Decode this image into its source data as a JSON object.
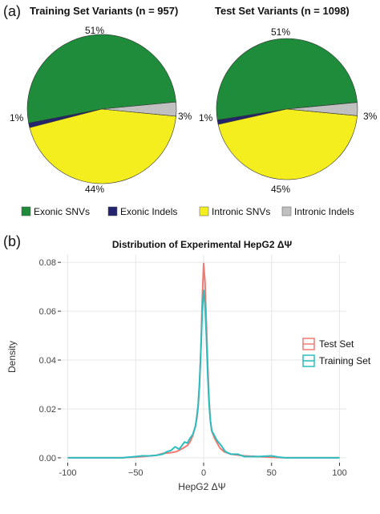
{
  "panels": {
    "a": "(a)",
    "b": "(b)"
  },
  "chart_data": [
    {
      "type": "pie",
      "title": "Training Set Variants (n = 957)",
      "labels": [
        "Exonic SNVs",
        "Exonic Indels",
        "Intronic SNVs",
        "Intronic Indels"
      ],
      "values": [
        51,
        1,
        44,
        3
      ],
      "value_labels": [
        "51%",
        "1%",
        "44%",
        "3%"
      ],
      "colors": [
        "#1e8c3a",
        "#24246e",
        "#f4ee1e",
        "#c0c0c0"
      ]
    },
    {
      "type": "pie",
      "title": "Test Set Variants (n = 1098)",
      "labels": [
        "Exonic SNVs",
        "Exonic Indels",
        "Intronic SNVs",
        "Intronic Indels"
      ],
      "values": [
        51,
        1,
        45,
        3
      ],
      "value_labels": [
        "51%",
        "1%",
        "45%",
        "3%"
      ],
      "colors": [
        "#1e8c3a",
        "#24246e",
        "#f4ee1e",
        "#c0c0c0"
      ]
    },
    {
      "type": "line",
      "title": "Distribution of Experimental HepG2 ΔΨ",
      "xlabel": "HepG2 ΔΨ",
      "ylabel": "Density",
      "xlim": [
        -105,
        105
      ],
      "ylim": [
        -0.002,
        0.083
      ],
      "xticks": [
        "-100",
        "−50",
        "0",
        "50",
        "100"
      ],
      "xtick_values": [
        -100,
        -50,
        0,
        50,
        100
      ],
      "yticks": [
        "0.00",
        "0.02",
        "0.04",
        "0.06",
        "0.08"
      ],
      "ytick_values": [
        0,
        0.02,
        0.04,
        0.06,
        0.08
      ],
      "legend_position": "right",
      "series": [
        {
          "name": "Test Set",
          "color": "#f07a72",
          "points": [
            [
              -100,
              0
            ],
            [
              -60,
              0
            ],
            [
              -45,
              0.0005
            ],
            [
              -35,
              0.001
            ],
            [
              -30,
              0.0018
            ],
            [
              -25,
              0.002
            ],
            [
              -20,
              0.0025
            ],
            [
              -15,
              0.004
            ],
            [
              -12,
              0.005
            ],
            [
              -10,
              0.0065
            ],
            [
              -8,
              0.009
            ],
            [
              -6,
              0.013
            ],
            [
              -5,
              0.016
            ],
            [
              -4,
              0.021
            ],
            [
              -3,
              0.03
            ],
            [
              -2,
              0.045
            ],
            [
              -1,
              0.065
            ],
            [
              0,
              0.0795
            ],
            [
              1,
              0.072
            ],
            [
              2,
              0.055
            ],
            [
              3,
              0.038
            ],
            [
              4,
              0.024
            ],
            [
              5,
              0.015
            ],
            [
              6,
              0.011
            ],
            [
              8,
              0.008
            ],
            [
              10,
              0.006
            ],
            [
              12,
              0.004
            ],
            [
              15,
              0.0025
            ],
            [
              20,
              0.0015
            ],
            [
              30,
              0.0008
            ],
            [
              40,
              0.0005
            ],
            [
              50,
              0.0002
            ],
            [
              60,
              0
            ],
            [
              100,
              0
            ]
          ]
        },
        {
          "name": "Training Set",
          "color": "#2bbdc0",
          "points": [
            [
              -100,
              0
            ],
            [
              -60,
              0
            ],
            [
              -50,
              0.0005
            ],
            [
              -45,
              0.0008
            ],
            [
              -40,
              0.0008
            ],
            [
              -35,
              0.001
            ],
            [
              -30,
              0.0015
            ],
            [
              -27,
              0.0025
            ],
            [
              -24,
              0.003
            ],
            [
              -21,
              0.0045
            ],
            [
              -18,
              0.0035
            ],
            [
              -16,
              0.005
            ],
            [
              -14,
              0.0065
            ],
            [
              -12,
              0.006
            ],
            [
              -10,
              0.008
            ],
            [
              -8,
              0.0095
            ],
            [
              -6,
              0.013
            ],
            [
              -5,
              0.017
            ],
            [
              -4,
              0.022
            ],
            [
              -3,
              0.031
            ],
            [
              -2,
              0.044
            ],
            [
              -1,
              0.06
            ],
            [
              0,
              0.0685
            ],
            [
              1,
              0.063
            ],
            [
              2,
              0.05
            ],
            [
              3,
              0.034
            ],
            [
              4,
              0.022
            ],
            [
              5,
              0.015
            ],
            [
              6,
              0.011
            ],
            [
              8,
              0.009
            ],
            [
              10,
              0.007
            ],
            [
              13,
              0.005
            ],
            [
              16,
              0.0025
            ],
            [
              20,
              0.0015
            ],
            [
              25,
              0.0015
            ],
            [
              30,
              0.0005
            ],
            [
              40,
              0.0005
            ],
            [
              50,
              0.0008
            ],
            [
              55,
              0.0003
            ],
            [
              60,
              0
            ],
            [
              100,
              0
            ]
          ]
        }
      ]
    }
  ]
}
